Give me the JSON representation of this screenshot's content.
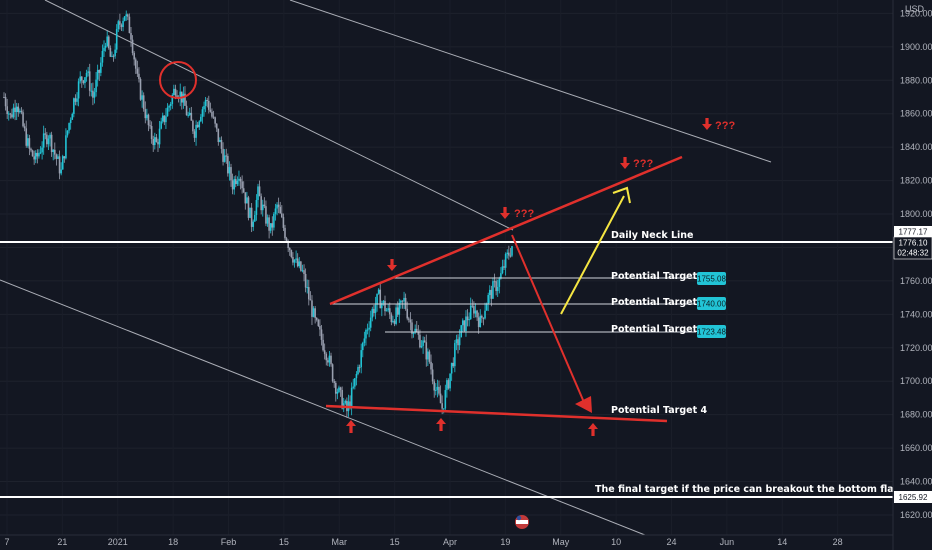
{
  "chart_data": {
    "type": "candlestick",
    "currency": "USD",
    "price_axis": {
      "min": 1608,
      "max": 1928,
      "ticks": [
        1920,
        1900,
        1880,
        1860,
        1840,
        1820,
        1800,
        1780,
        1760,
        1740,
        1720,
        1700,
        1680,
        1660,
        1640,
        1620
      ]
    },
    "date_axis": {
      "labels": [
        "7",
        "21",
        "2021",
        "18",
        "Feb",
        "15",
        "Mar",
        "15",
        "Apr",
        "19",
        "May",
        "10",
        "24",
        "Jun",
        "14",
        "28"
      ]
    },
    "price_series": [
      1870,
      1858,
      1868,
      1852,
      1838,
      1832,
      1842,
      1848,
      1836,
      1825,
      1850,
      1868,
      1880,
      1885,
      1870,
      1885,
      1905,
      1890,
      1912,
      1920,
      1908,
      1880,
      1865,
      1848,
      1842,
      1855,
      1865,
      1876,
      1870,
      1858,
      1850,
      1862,
      1868,
      1855,
      1842,
      1830,
      1818,
      1826,
      1810,
      1795,
      1812,
      1800,
      1790,
      1805,
      1792,
      1780,
      1770,
      1765,
      1750,
      1735,
      1725,
      1715,
      1700,
      1690,
      1682,
      1695,
      1712,
      1730,
      1742,
      1750,
      1744,
      1738,
      1740,
      1748,
      1735,
      1728,
      1722,
      1712,
      1695,
      1684,
      1700,
      1718,
      1730,
      1738,
      1744,
      1735,
      1748,
      1755,
      1760,
      1772,
      1781
    ],
    "levels": [
      {
        "label": "Potential Target 1",
        "price": "1755.08"
      },
      {
        "label": "Potential Target 2",
        "price": "1740.00"
      },
      {
        "label": "Potential Target 3",
        "price": "1723.48"
      }
    ],
    "annotations": {
      "neck_label": "Daily Neck Line",
      "neck_price": "1777.17",
      "current_price": "1776.10",
      "countdown": "02:48:32",
      "target4_label": "Potential Target 4",
      "final_label": "The final target if the price can breakout the bottom flag",
      "final_price": "1625.92",
      "question": "???"
    }
  }
}
